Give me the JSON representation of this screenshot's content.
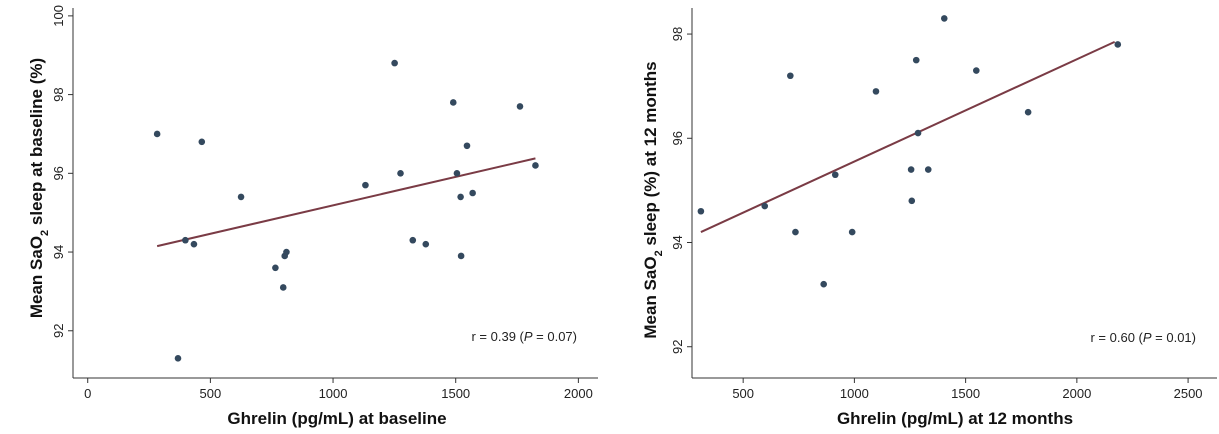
{
  "colors": {
    "point": "#34495e",
    "fit": "#7a3b45",
    "axis": "#333333"
  },
  "chart_data": [
    {
      "type": "scatter",
      "xlabel": "Ghrelin (pg/mL) at baseline",
      "ylabel_parts": {
        "pre": "Mean SaO",
        "sub": "2",
        "post": " sleep at baseline (%)"
      },
      "annotation": {
        "pre": "r = 0.39 (",
        "italic": "P",
        "post": " = 0.07)"
      },
      "xlim": [
        -60,
        2080
      ],
      "ylim": [
        90.8,
        100.2
      ],
      "xticks": [
        0,
        500,
        1000,
        1500,
        2000
      ],
      "yticks": [
        92,
        94,
        96,
        98,
        100
      ],
      "points": [
        [
          283,
          97.0
        ],
        [
          368,
          91.3
        ],
        [
          398,
          94.3
        ],
        [
          433,
          94.2
        ],
        [
          465,
          96.8
        ],
        [
          625,
          95.4
        ],
        [
          765,
          93.6
        ],
        [
          797,
          93.1
        ],
        [
          803,
          93.9
        ],
        [
          810,
          94.0
        ],
        [
          1132,
          95.7
        ],
        [
          1251,
          98.8
        ],
        [
          1275,
          96.0
        ],
        [
          1325,
          94.3
        ],
        [
          1378,
          94.2
        ],
        [
          1490,
          97.8
        ],
        [
          1505,
          96.0
        ],
        [
          1520,
          95.4
        ],
        [
          1522,
          93.9
        ],
        [
          1546,
          96.7
        ],
        [
          1569,
          95.5
        ],
        [
          1762,
          97.7
        ],
        [
          1825,
          96.2
        ]
      ],
      "fit_line": [
        [
          283,
          94.15
        ],
        [
          1825,
          96.38
        ]
      ]
    },
    {
      "type": "scatter",
      "xlabel": "Ghrelin (pg/mL) at 12 months",
      "ylabel_parts": {
        "pre": "Mean SaO",
        "sub": "2",
        "post": " sleep (%) at 12 months"
      },
      "annotation": {
        "pre": "r = 0.60 (",
        "italic": "P",
        "post": " = 0.01)"
      },
      "xlim": [
        270,
        2630
      ],
      "ylim": [
        91.4,
        98.5
      ],
      "xticks": [
        500,
        1000,
        1500,
        2000,
        2500
      ],
      "yticks": [
        92,
        94,
        96,
        98
      ],
      "points": [
        [
          310,
          94.6
        ],
        [
          597,
          94.7
        ],
        [
          712,
          97.2
        ],
        [
          735,
          94.2
        ],
        [
          862,
          93.2
        ],
        [
          914,
          95.3
        ],
        [
          990,
          94.2
        ],
        [
          1097,
          96.9
        ],
        [
          1255,
          95.4
        ],
        [
          1258,
          94.8
        ],
        [
          1278,
          97.5
        ],
        [
          1286,
          96.1
        ],
        [
          1332,
          95.4
        ],
        [
          1404,
          98.3
        ],
        [
          1548,
          97.3
        ],
        [
          1781,
          96.5
        ],
        [
          2184,
          97.8
        ]
      ],
      "fit_line": [
        [
          310,
          94.2
        ],
        [
          2170,
          97.85
        ]
      ]
    }
  ]
}
